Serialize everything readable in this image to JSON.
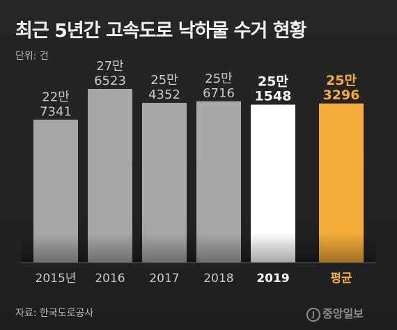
{
  "chart_data": {
    "type": "bar",
    "title": "최근 5년간 고속도로 낙하물 수거 현황",
    "unit": "단위: 건",
    "categories": [
      "2015년",
      "2016",
      "2017",
      "2018",
      "2019",
      "평균"
    ],
    "values": [
      227341,
      276523,
      254352,
      256716,
      251548,
      253296
    ],
    "value_labels": [
      [
        "22만",
        "7341"
      ],
      [
        "27만",
        "6523"
      ],
      [
        "25만",
        "4352"
      ],
      [
        "25만",
        "6716"
      ],
      [
        "25만",
        "1548"
      ],
      [
        "25만",
        "3296"
      ]
    ],
    "colors": [
      "#a8a8a8",
      "#a8a8a8",
      "#a8a8a8",
      "#a8a8a8",
      "#ffffff",
      "#f5ac3a"
    ],
    "label_colors": [
      "#c9c9c9",
      "#c9c9c9",
      "#c9c9c9",
      "#c9c9c9",
      "#ffffff",
      "#f5ac3a"
    ],
    "highlight": [
      false,
      false,
      false,
      false,
      true,
      true
    ],
    "grid": false,
    "legend": "none"
  },
  "footer": {
    "source": "자료: 한국도로공사",
    "logo": "중앙일보",
    "logo_mark": "J"
  }
}
